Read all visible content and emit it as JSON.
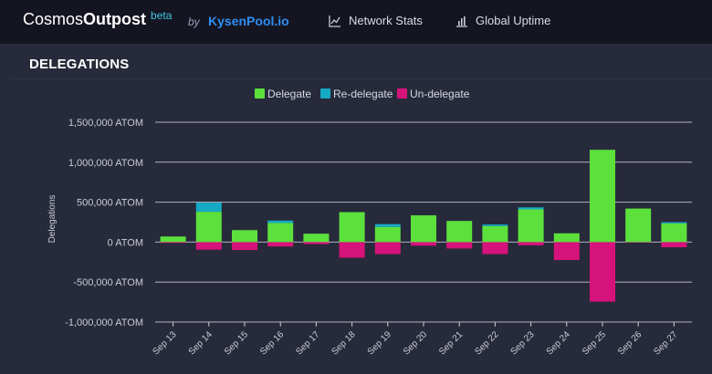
{
  "header": {
    "brand_light": "Cosmos",
    "brand_bold": "Outpost",
    "beta": "beta",
    "by": "by",
    "pool": "KysenPool.io",
    "nav": [
      {
        "label": "Network Stats",
        "icon": "line-chart-icon"
      },
      {
        "label": "Global Uptime",
        "icon": "bar-chart-icon"
      }
    ]
  },
  "panel": {
    "title": "DELEGATIONS"
  },
  "colors": {
    "delegate": "#5ce13c",
    "redelegate": "#16a9c4",
    "undelegate": "#d6137a",
    "grid": "#c9ccd6"
  },
  "chart_data": {
    "type": "bar",
    "stacked": true,
    "ylabel": "Delegations",
    "ylim": [
      -1000000,
      1500000
    ],
    "yticks": [
      {
        "value": 1500000,
        "label": "1,500,000 ATOM"
      },
      {
        "value": 1000000,
        "label": "1,000,000 ATOM"
      },
      {
        "value": 500000,
        "label": "500,000 ATOM"
      },
      {
        "value": 0,
        "label": "0 ATOM"
      },
      {
        "value": -500000,
        "label": "-500,000 ATOM"
      },
      {
        "value": -1000000,
        "label": "-1,000,000 ATOM"
      }
    ],
    "categories": [
      "Sep 13",
      "Sep 14",
      "Sep 15",
      "Sep 16",
      "Sep 17",
      "Sep 18",
      "Sep 19",
      "Sep 20",
      "Sep 21",
      "Sep 22",
      "Sep 23",
      "Sep 24",
      "Sep 25",
      "Sep 26",
      "Sep 27"
    ],
    "series": [
      {
        "name": "Delegate",
        "key": "delegate",
        "values": [
          70000,
          380000,
          150000,
          240000,
          105000,
          375000,
          190000,
          335000,
          265000,
          200000,
          410000,
          110000,
          1155000,
          420000,
          235000
        ]
      },
      {
        "name": "Re-delegate",
        "key": "redelegate",
        "values": [
          0,
          115000,
          0,
          30000,
          0,
          0,
          35000,
          0,
          0,
          20000,
          25000,
          0,
          0,
          0,
          15000
        ]
      },
      {
        "name": "Un-delegate",
        "key": "undelegate",
        "values": [
          -10000,
          -95000,
          -100000,
          -55000,
          -25000,
          -195000,
          -150000,
          -45000,
          -80000,
          -150000,
          -40000,
          -225000,
          -745000,
          -5000,
          -65000
        ]
      }
    ],
    "legend_position": "top-center"
  }
}
